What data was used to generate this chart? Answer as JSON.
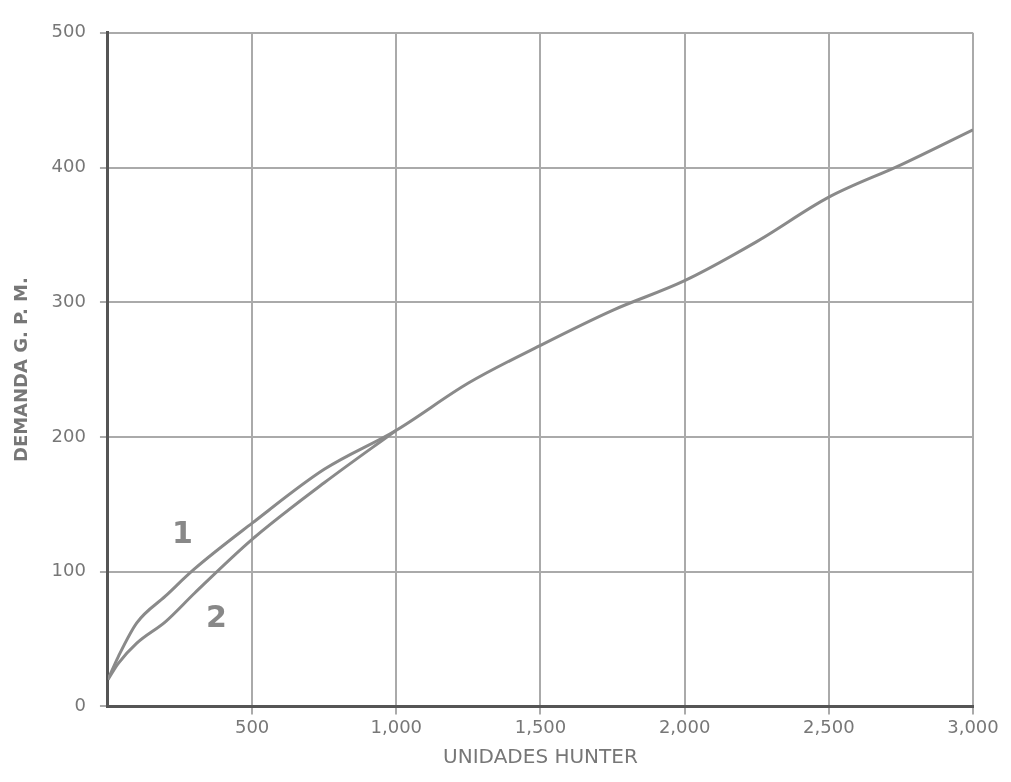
{
  "chart_data": {
    "type": "line",
    "xlabel": "UNIDADES HUNTER",
    "ylabel": "DEMANDA G. P. M.",
    "xlim": [
      0,
      3000
    ],
    "ylim": [
      0,
      500
    ],
    "xticks": [
      500,
      {
        "value": 1000,
        "label": "1,000"
      },
      {
        "value": 1500,
        "label": "1,500"
      },
      {
        "value": 2000,
        "label": "2,000"
      },
      {
        "value": 2500,
        "label": "2,500"
      },
      {
        "value": 3000,
        "label": "3,000"
      }
    ],
    "yticks": [
      0,
      100,
      200,
      300,
      400,
      500
    ],
    "grid": true,
    "legend": false,
    "marker": "none",
    "line_style": "solid",
    "series": [
      {
        "name": "1",
        "color": "#8a8a8a",
        "x": [
          0,
          36,
          100,
          200,
          300,
          500,
          750,
          1000,
          1250,
          1500,
          1750,
          2000,
          2250,
          2500,
          2750,
          3000
        ],
        "values": [
          20,
          37,
          62,
          82,
          102,
          136,
          176,
          205,
          240,
          268,
          294,
          316,
          345,
          378,
          402,
          428
        ]
      },
      {
        "name": "2",
        "color": "#8a8a8a",
        "x": [
          0,
          36,
          100,
          200,
          300,
          500,
          750,
          1000
        ],
        "values": [
          20,
          32,
          47,
          63,
          84,
          124,
          166,
          205
        ]
      }
    ]
  }
}
